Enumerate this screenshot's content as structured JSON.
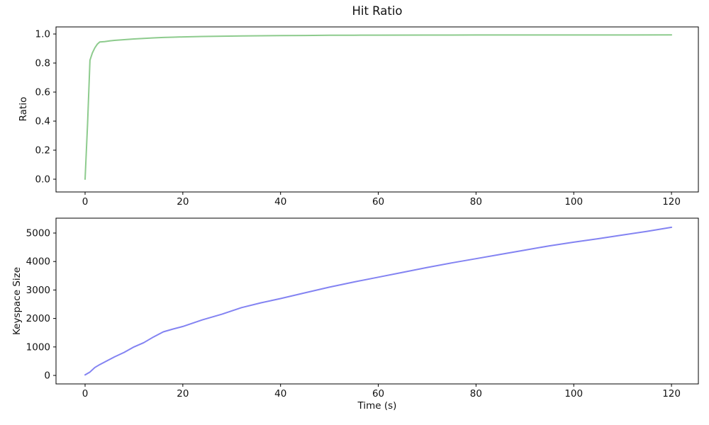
{
  "figure": {
    "title": "Hit Ratio",
    "background": "#ffffff",
    "text_color": "#111111",
    "spine_color": "#000000"
  },
  "chart_data": [
    {
      "type": "line",
      "title": "Hit Ratio",
      "xlabel": "",
      "ylabel": "Ratio",
      "grid": false,
      "legend": null,
      "xlim": [
        -5.95,
        125.5
      ],
      "ylim": [
        -0.0878,
        1.0488
      ],
      "xticks": [
        0,
        20,
        40,
        60,
        80,
        100,
        120
      ],
      "xtick_labels": [
        "0",
        "20",
        "40",
        "60",
        "80",
        "100",
        "120"
      ],
      "yticks": [
        0.0,
        0.2,
        0.4,
        0.6,
        0.8,
        1.0
      ],
      "ytick_labels": [
        "0.0",
        "0.2",
        "0.4",
        "0.6",
        "0.8",
        "1.0"
      ],
      "series": [
        {
          "name": "hit-ratio",
          "color": "#8dcb8d",
          "x": [
            0,
            0.5,
            1,
            1.5,
            2,
            2.5,
            3,
            4,
            5,
            6,
            8,
            10,
            12,
            14,
            16,
            18,
            20,
            24,
            28,
            32,
            36,
            40,
            45,
            50,
            55,
            60,
            70,
            80,
            90,
            100,
            110,
            120
          ],
          "y": [
            0.0,
            0.38,
            0.82,
            0.87,
            0.905,
            0.93,
            0.945,
            0.948,
            0.952,
            0.956,
            0.961,
            0.966,
            0.97,
            0.973,
            0.976,
            0.978,
            0.98,
            0.983,
            0.985,
            0.987,
            0.988,
            0.989,
            0.99,
            0.991,
            0.9915,
            0.992,
            0.9925,
            0.993,
            0.993,
            0.9932,
            0.9933,
            0.9935
          ]
        }
      ]
    },
    {
      "type": "line",
      "title": "",
      "xlabel": "Time (s)",
      "ylabel": "Keyspace Size",
      "grid": false,
      "legend": null,
      "xlim": [
        -5.95,
        125.5
      ],
      "ylim": [
        -298,
        5522
      ],
      "xticks": [
        0,
        20,
        40,
        60,
        80,
        100,
        120
      ],
      "xtick_labels": [
        "0",
        "20",
        "40",
        "60",
        "80",
        "100",
        "120"
      ],
      "yticks": [
        0,
        1000,
        2000,
        3000,
        4000,
        5000
      ],
      "ytick_labels": [
        "0",
        "1000",
        "2000",
        "3000",
        "4000",
        "5000"
      ],
      "series": [
        {
          "name": "keyspace-size",
          "color": "#8383f2",
          "x": [
            0,
            1,
            2,
            3,
            4,
            5,
            6,
            8,
            10,
            12,
            14,
            16,
            18,
            20,
            24,
            28,
            32,
            36,
            40,
            45,
            50,
            55,
            60,
            65,
            70,
            75,
            80,
            85,
            90,
            95,
            100,
            105,
            110,
            115,
            120
          ],
          "y": [
            20,
            120,
            280,
            380,
            470,
            560,
            650,
            810,
            1000,
            1150,
            1350,
            1530,
            1630,
            1720,
            1950,
            2150,
            2380,
            2550,
            2700,
            2900,
            3100,
            3280,
            3450,
            3620,
            3790,
            3950,
            4100,
            4250,
            4400,
            4550,
            4680,
            4800,
            4930,
            5060,
            5200
          ]
        }
      ]
    }
  ]
}
